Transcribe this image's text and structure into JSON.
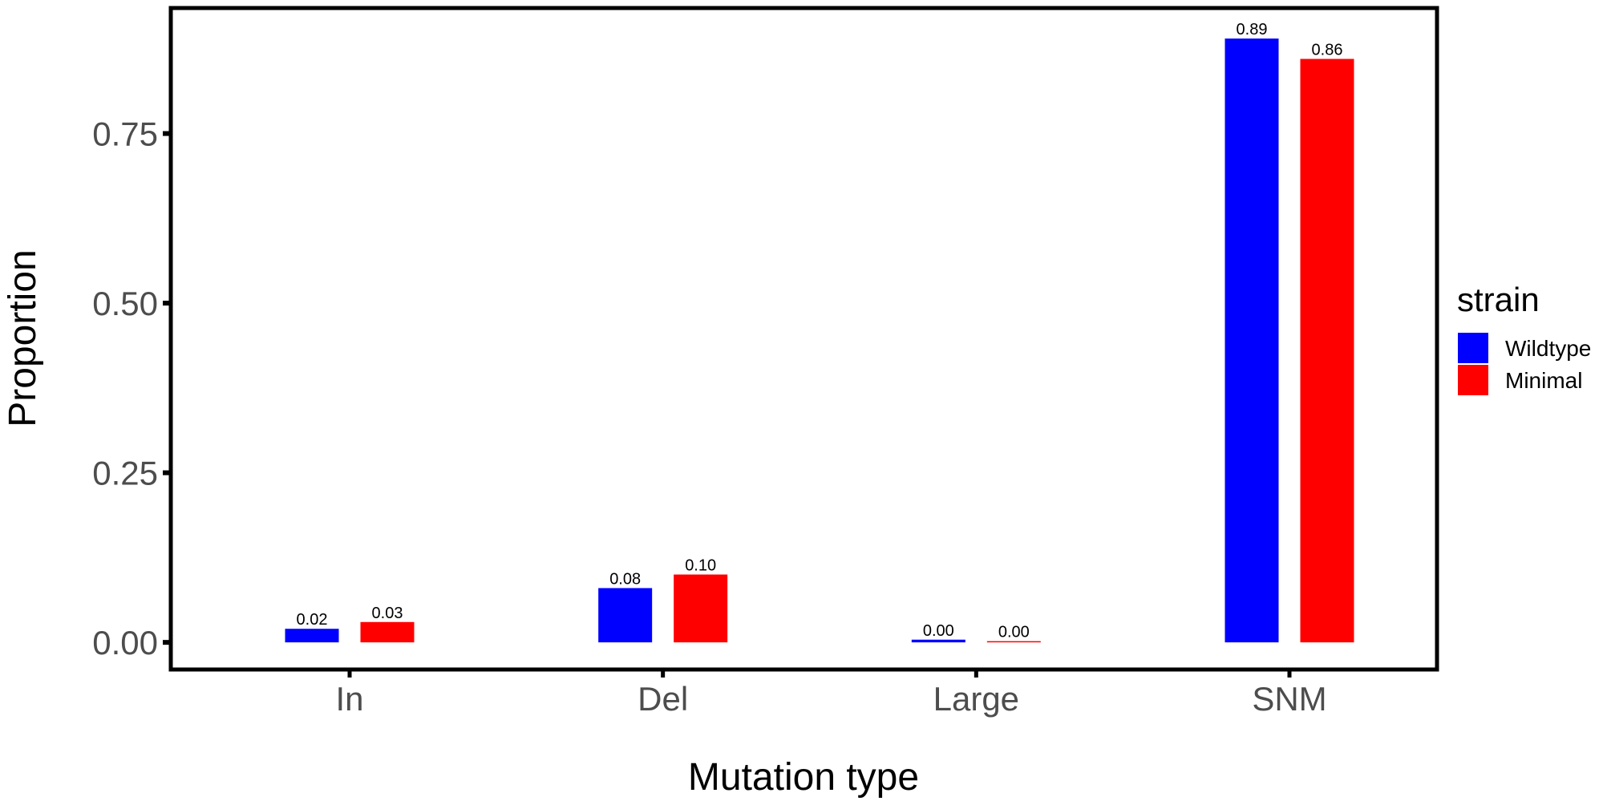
{
  "chart_data": {
    "type": "bar",
    "categories": [
      "In",
      "Del",
      "Large",
      "SNM"
    ],
    "series": [
      {
        "name": "Wildtype",
        "color": "#0000ff",
        "values": [
          0.02,
          0.08,
          0.004,
          0.89
        ],
        "labels": [
          "0.02",
          "0.08",
          "0.00",
          "0.89"
        ]
      },
      {
        "name": "Minimal",
        "color": "#ff0000",
        "values": [
          0.03,
          0.1,
          0.001,
          0.86
        ],
        "labels": [
          "0.03",
          "0.10",
          "0.00",
          "0.86"
        ]
      }
    ],
    "xlabel": "Mutation type",
    "ylabel": "Proportion",
    "ylim": [
      -0.04,
      0.935
    ],
    "yticks": [
      0.0,
      0.25,
      0.5,
      0.75
    ],
    "ytick_labels": [
      "0.00",
      "0.25",
      "0.50",
      "0.75"
    ],
    "legend_title": "strain",
    "legend_position": "right",
    "grid": false
  }
}
